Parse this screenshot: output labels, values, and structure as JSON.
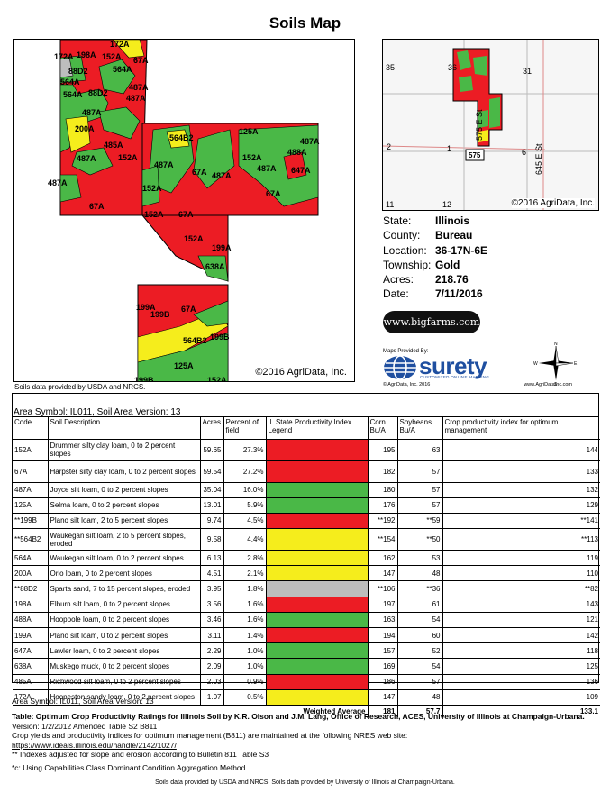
{
  "title": "Soils Map",
  "map": {
    "credit": "©2016 AgriData, Inc.",
    "labels": [
      "172A",
      "198A",
      "152A",
      "67A",
      "88D2",
      "564A",
      "487A",
      "200A",
      "485A",
      "152A",
      "487A",
      "67A",
      "564B2",
      "125A",
      "487A",
      "152A",
      "488A",
      "647A",
      "67A",
      "487A",
      "152A",
      "67A",
      "152A",
      "199A",
      "638A",
      "199A",
      "199B",
      "67A",
      "564B2",
      "199B",
      "125A",
      "199B",
      "152A"
    ]
  },
  "source_note": "Soils data provided by USDA and NRCS.",
  "location_map": {
    "credit": "©2016 AgriData, Inc.",
    "sections": [
      "35",
      "36",
      "31",
      "2",
      "1",
      "6",
      "11",
      "12"
    ],
    "roads": [
      "575 E St",
      "645 E St"
    ],
    "route": "575"
  },
  "info": [
    {
      "key": "State:",
      "value": "Illinois"
    },
    {
      "key": "County:",
      "value": "Bureau"
    },
    {
      "key": "Location:",
      "value": "36-17N-6E"
    },
    {
      "key": "Township:",
      "value": "Gold"
    },
    {
      "key": "Acres:",
      "value": "218.76"
    },
    {
      "key": "Date:",
      "value": "7/11/2016"
    }
  ],
  "logos": {
    "bigfarms": "www.bigfarms.com",
    "maps_provided_by": "Maps Provided By:",
    "surety": "surety",
    "surety_tagline": "CUSTOMIZED ONLINE MAPPING",
    "surety_copyright": "© AgriData, Inc. 2016",
    "surety_url": "www.AgriDataInc.com",
    "compass": {
      "n": "N",
      "s": "S",
      "e": "E",
      "w": "W"
    }
  },
  "table": {
    "area_symbol": "Area Symbol: IL011, Soil Area Version: 13",
    "headers": [
      "Code",
      "Soil Description",
      "Acres",
      "Percent of field",
      "Il. State Productivity Index Legend",
      "Corn Bu/A",
      "Soybeans Bu/A",
      "Crop productivity index for optimum management"
    ],
    "rows": [
      {
        "code": "152A",
        "desc": "Drummer silty clay loam, 0 to 2 percent slopes",
        "acres": "59.65",
        "pct": "27.3%",
        "color": "#ec1c24",
        "corn": "195",
        "soy": "63",
        "cpi": "144"
      },
      {
        "code": "67A",
        "desc": "Harpster silty clay loam, 0 to 2 percent slopes",
        "acres": "59.54",
        "pct": "27.2%",
        "color": "#ec1c24",
        "corn": "182",
        "soy": "57",
        "cpi": "133"
      },
      {
        "code": "487A",
        "desc": "Joyce silt loam, 0 to 2 percent slopes",
        "acres": "35.04",
        "pct": "16.0%",
        "color": "#4ab847",
        "corn": "180",
        "soy": "57",
        "cpi": "132"
      },
      {
        "code": "125A",
        "desc": "Selma loam, 0 to 2 percent slopes",
        "acres": "13.01",
        "pct": "5.9%",
        "color": "#4ab847",
        "corn": "176",
        "soy": "57",
        "cpi": "129"
      },
      {
        "code": "**199B",
        "desc": "Plano silt loam, 2 to 5 percent slopes",
        "acres": "9.74",
        "pct": "4.5%",
        "color": "#ec1c24",
        "corn": "**192",
        "soy": "**59",
        "cpi": "**141"
      },
      {
        "code": "**564B2",
        "desc": "Waukegan silt loam, 2 to 5 percent slopes, eroded",
        "acres": "9.58",
        "pct": "4.4%",
        "color": "#f5ed1c",
        "corn": "**154",
        "soy": "**50",
        "cpi": "**113"
      },
      {
        "code": "564A",
        "desc": "Waukegan silt loam, 0 to 2 percent slopes",
        "acres": "6.13",
        "pct": "2.8%",
        "color": "#f5ed1c",
        "corn": "162",
        "soy": "53",
        "cpi": "119"
      },
      {
        "code": "200A",
        "desc": "Orio loam, 0 to 2 percent slopes",
        "acres": "4.51",
        "pct": "2.1%",
        "color": "#f5ed1c",
        "corn": "147",
        "soy": "48",
        "cpi": "110"
      },
      {
        "code": "**88D2",
        "desc": "Sparta sand, 7 to 15 percent slopes, eroded",
        "acres": "3.95",
        "pct": "1.8%",
        "color": "#bdbdbd",
        "corn": "**106",
        "soy": "**36",
        "cpi": "**82"
      },
      {
        "code": "198A",
        "desc": "Elburn silt loam, 0 to 2 percent slopes",
        "acres": "3.56",
        "pct": "1.6%",
        "color": "#ec1c24",
        "corn": "197",
        "soy": "61",
        "cpi": "143"
      },
      {
        "code": "488A",
        "desc": "Hooppole loam, 0 to 2 percent slopes",
        "acres": "3.46",
        "pct": "1.6%",
        "color": "#4ab847",
        "corn": "163",
        "soy": "54",
        "cpi": "121"
      },
      {
        "code": "199A",
        "desc": "Plano silt loam, 0 to 2 percent slopes",
        "acres": "3.11",
        "pct": "1.4%",
        "color": "#ec1c24",
        "corn": "194",
        "soy": "60",
        "cpi": "142"
      },
      {
        "code": "647A",
        "desc": "Lawler loam, 0 to 2 percent slopes",
        "acres": "2.29",
        "pct": "1.0%",
        "color": "#4ab847",
        "corn": "157",
        "soy": "52",
        "cpi": "118"
      },
      {
        "code": "638A",
        "desc": "Muskego muck, 0 to 2 percent slopes",
        "acres": "2.09",
        "pct": "1.0%",
        "color": "#4ab847",
        "corn": "169",
        "soy": "54",
        "cpi": "125"
      },
      {
        "code": "485A",
        "desc": "Richwood silt loam, 0 to 2 percent slopes",
        "acres": "2.03",
        "pct": "0.9%",
        "color": "#ec1c24",
        "corn": "186",
        "soy": "57",
        "cpi": "136"
      },
      {
        "code": "172A",
        "desc": "Hoopeston sandy loam, 0 to 2 percent slopes",
        "acres": "1.07",
        "pct": "0.5%",
        "color": "#f5ed1c",
        "corn": "147",
        "soy": "48",
        "cpi": "109"
      }
    ],
    "weighted": {
      "label": "Weighted Average",
      "corn": "181",
      "soy": "57.7",
      "cpi": "133.1"
    }
  },
  "notes": {
    "area_symbol": "Area Symbol: IL011, Soil Area Version: 13",
    "table_title": "Table: Optimum Crop Productivity Ratings for Illinois Soil by K.R. Olson and J.M. Lang, Office of Research, ACES, University of Illinois at Champaign-Urbana.",
    "version": " Version: 1/2/2012 Amended Table S2 B811",
    "maintained": "Crop yields and productivity indices for optimum management (B811) are maintained at the following NRES web site:",
    "url": "https://www.ideals.illinois.edu/handle/2142/1027/",
    "asterisk": "** Indexes adjusted for slope and erosion according to Bulletin 811 Table S3",
    "capabilities": "*c:  Using Capabilities Class Dominant Condition Aggregation Method"
  },
  "footer": "Soils data provided by USDA and NRCS. Soils data provided by University of Illinois at Champaign-Urbana."
}
